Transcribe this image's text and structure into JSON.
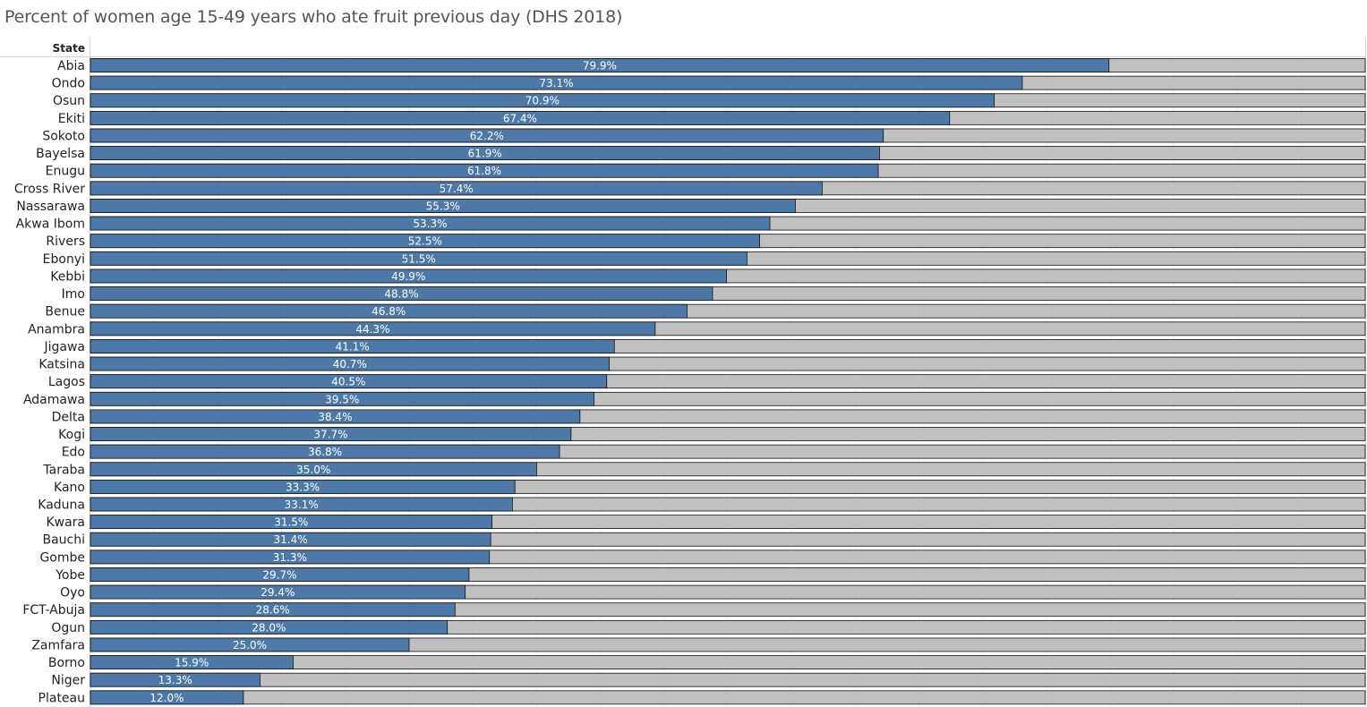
{
  "chart_data": {
    "type": "bar",
    "orientation": "horizontal",
    "stacked_background_to": 100,
    "title": "Percent of women age 15-49 years who ate fruit previous day (DHS 2018)",
    "row_header": "State",
    "xlim": [
      0,
      100
    ],
    "grid": true,
    "categories": [
      "Abia",
      "Ondo",
      "Osun",
      "Ekiti",
      "Sokoto",
      "Bayelsa",
      "Enugu",
      "Cross River",
      "Nassarawa",
      "Akwa Ibom",
      "Rivers",
      "Ebonyi",
      "Kebbi",
      "Imo",
      "Benue",
      "Anambra",
      "Jigawa",
      "Katsina",
      "Lagos",
      "Adamawa",
      "Delta",
      "Kogi",
      "Edo",
      "Taraba",
      "Kano",
      "Kaduna",
      "Kwara",
      "Bauchi",
      "Gombe",
      "Yobe",
      "Oyo",
      "FCT-Abuja",
      "Ogun",
      "Zamfara",
      "Borno",
      "Niger",
      "Plateau"
    ],
    "values": [
      79.9,
      73.1,
      70.9,
      67.4,
      62.2,
      61.9,
      61.8,
      57.4,
      55.3,
      53.3,
      52.5,
      51.5,
      49.9,
      48.8,
      46.8,
      44.3,
      41.1,
      40.7,
      40.5,
      39.5,
      38.4,
      37.7,
      36.8,
      35.0,
      33.3,
      33.1,
      31.5,
      31.4,
      31.3,
      29.7,
      29.4,
      28.6,
      28.0,
      25.0,
      15.9,
      13.3,
      12.0
    ],
    "colors": {
      "bar": "#4e78a7",
      "remainder": "#c0c0c0"
    }
  }
}
